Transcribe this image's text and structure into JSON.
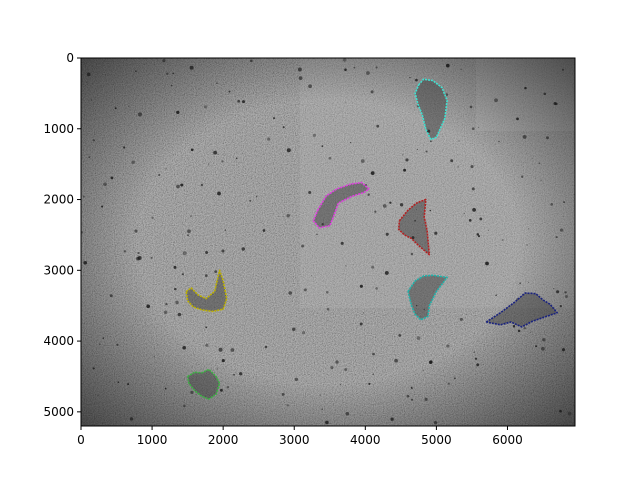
{
  "chart_data": {
    "type": "image",
    "title": "",
    "xlabel": "",
    "ylabel": "",
    "xlim": [
      0,
      6950
    ],
    "ylim": [
      5200,
      0
    ],
    "x_ticks": [
      0,
      1000,
      2000,
      3000,
      4000,
      5000,
      6000
    ],
    "y_ticks": [
      0,
      1000,
      2000,
      3000,
      4000,
      5000
    ],
    "grid": false,
    "legend": "none",
    "image": {
      "description": "grayscale microscopy mosaic with dark debris",
      "background_color": "#7a7a7a"
    },
    "contours": [
      {
        "color": "#40e0d0",
        "x": [
          4750,
          4820,
          4950,
          5080,
          5150,
          5120,
          5000,
          4920,
          4850,
          4800,
          4740,
          4700,
          4750
        ],
        "y": [
          380,
          300,
          320,
          420,
          600,
          850,
          1120,
          1150,
          1000,
          800,
          650,
          500,
          380
        ]
      },
      {
        "color": "#e040e0",
        "x": [
          3330,
          3450,
          3600,
          3800,
          3950,
          4050,
          3980,
          3800,
          3620,
          3550,
          3500,
          3350,
          3270,
          3330
        ],
        "y": [
          2150,
          1950,
          1850,
          1780,
          1760,
          1850,
          1900,
          1960,
          2050,
          2250,
          2370,
          2400,
          2300,
          2150
        ]
      },
      {
        "color": "#b22222",
        "x": [
          4480,
          4600,
          4720,
          4850,
          4830,
          4870,
          4900,
          4750,
          4650,
          4550,
          4470,
          4480
        ],
        "y": [
          2300,
          2150,
          2050,
          2000,
          2250,
          2450,
          2780,
          2650,
          2550,
          2500,
          2420,
          2300
        ]
      },
      {
        "color": "#20b2aa",
        "x": [
          4600,
          4700,
          4820,
          4950,
          5150,
          5000,
          4900,
          4880,
          4780,
          4700,
          4650,
          4600
        ],
        "y": [
          3300,
          3150,
          3080,
          3070,
          3100,
          3300,
          3500,
          3650,
          3700,
          3620,
          3500,
          3300
        ]
      },
      {
        "color": "#bdb000",
        "x": [
          1480,
          1550,
          1650,
          1760,
          1880,
          1950,
          2000,
          2050,
          2000,
          1850,
          1700,
          1580,
          1500,
          1480
        ],
        "y": [
          3300,
          3250,
          3350,
          3400,
          3300,
          3000,
          3150,
          3400,
          3550,
          3580,
          3560,
          3520,
          3430,
          3300
        ]
      },
      {
        "color": "#1a237e",
        "x": [
          5700,
          5900,
          6100,
          6250,
          6400,
          6500,
          6600,
          6700,
          6550,
          6350,
          6200,
          6050,
          5900,
          5700
        ],
        "y": [
          3730,
          3600,
          3450,
          3320,
          3330,
          3420,
          3480,
          3600,
          3650,
          3720,
          3800,
          3730,
          3770,
          3730
        ]
      },
      {
        "color": "#3cb043",
        "x": [
          1500,
          1600,
          1700,
          1800,
          1900,
          1950,
          1900,
          1800,
          1700,
          1600,
          1520,
          1500
        ],
        "y": [
          4500,
          4440,
          4450,
          4400,
          4500,
          4600,
          4750,
          4820,
          4780,
          4700,
          4600,
          4500
        ]
      }
    ]
  }
}
